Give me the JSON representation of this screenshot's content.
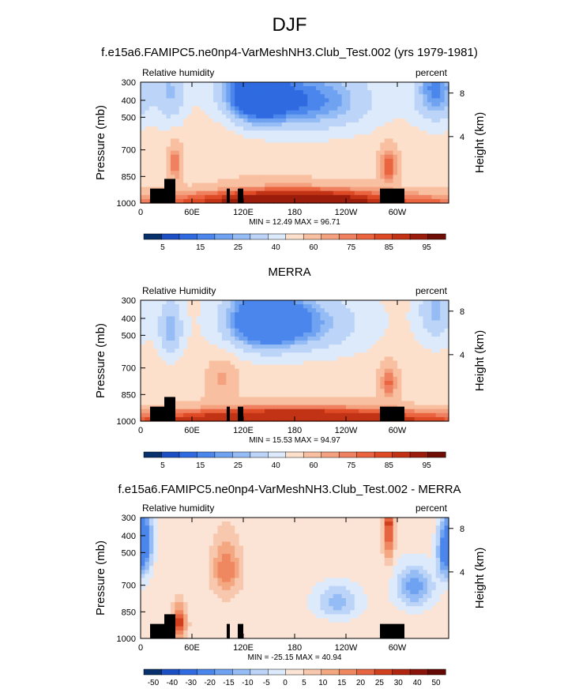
{
  "main_title": "DJF",
  "colors": {
    "rh_levels": [
      "#08306b",
      "#1c4fc4",
      "#2f6ae0",
      "#4a86ec",
      "#6fa2f0",
      "#95bcf4",
      "#bcd4f8",
      "#ddeafb",
      "#fde0cc",
      "#f8c0a0",
      "#f4a180",
      "#ef8160",
      "#ea6440",
      "#de4a26",
      "#c23214",
      "#9c1c0c",
      "#6e0e06"
    ],
    "diff_levels": [
      "#08306b",
      "#1c4fc4",
      "#2f6ae0",
      "#4a86ec",
      "#6fa2f0",
      "#95bcf4",
      "#bcd4f8",
      "#ddeafb",
      "#fbe4d5",
      "#f8c8ae",
      "#f4a882",
      "#ef8760",
      "#e66440",
      "#d0401f",
      "#b02510",
      "#8a130a",
      "#640804"
    ],
    "topography": "#000000"
  },
  "chart_data": [
    {
      "type": "heatmap",
      "title": "f.e15a6.FAMIPC5.ne0np4-VarMeshNH3.Club_Test.002 (yrs 1979-1981)",
      "left_label": "Relative humidity",
      "right_label": "percent",
      "ylabel": "Pressure (mb)",
      "ylabel_right": "Height (km)",
      "x_ticks": [
        "0",
        "60E",
        "120E",
        "180",
        "120W",
        "60W"
      ],
      "y_ticks": [
        "300",
        "400",
        "500",
        "700",
        "850",
        "1000"
      ],
      "y_right_ticks": [
        "8",
        "4"
      ],
      "minmax_text": "MIN =  12.49   MAX =  96.71",
      "min": 12.49,
      "max": 96.71,
      "colorbar_labels": [
        "5",
        "15",
        "25",
        "40",
        "60",
        "75",
        "85",
        "95"
      ],
      "blobs": [
        {
          "lon": 130,
          "p": 340,
          "v": 12,
          "s": 22
        },
        {
          "lon": 200,
          "p": 360,
          "v": 18,
          "s": 40
        },
        {
          "lon": 345,
          "p": 320,
          "v": 18,
          "s": 14
        },
        {
          "lon": 35,
          "p": 330,
          "v": 30,
          "s": 10
        },
        {
          "lon": 95,
          "p": 500,
          "v": 62,
          "s": 18
        },
        {
          "lon": 40,
          "p": 680,
          "v": 80,
          "s": 5
        },
        {
          "lon": 290,
          "p": 690,
          "v": 86,
          "s": 6
        },
        {
          "lon": 140,
          "p": 700,
          "v": 58,
          "s": 25
        },
        {
          "lon": 180,
          "p": 950,
          "v": 90,
          "s": 60
        }
      ]
    },
    {
      "type": "heatmap",
      "title": "MERRA",
      "left_label": "Relative Humidity",
      "right_label": "percent",
      "ylabel": "Pressure (mb)",
      "ylabel_right": "Height (km)",
      "x_ticks": [
        "0",
        "60E",
        "120E",
        "180",
        "120W",
        "60W"
      ],
      "y_ticks": [
        "300",
        "400",
        "500",
        "700",
        "850",
        "1000"
      ],
      "y_right_ticks": [
        "8",
        "4"
      ],
      "minmax_text": "MIN =  15.53   MAX =  94.97",
      "min": 15.53,
      "max": 94.97,
      "colorbar_labels": [
        "5",
        "15",
        "25",
        "40",
        "60",
        "75",
        "85",
        "95"
      ],
      "blobs": [
        {
          "lon": 140,
          "p": 360,
          "v": 15,
          "s": 24
        },
        {
          "lon": 190,
          "p": 380,
          "v": 25,
          "s": 40
        },
        {
          "lon": 35,
          "p": 400,
          "v": 25,
          "s": 8
        },
        {
          "lon": 345,
          "p": 330,
          "v": 28,
          "s": 12
        },
        {
          "lon": 95,
          "p": 650,
          "v": 72,
          "s": 10
        },
        {
          "lon": 290,
          "p": 680,
          "v": 82,
          "s": 6
        },
        {
          "lon": 180,
          "p": 960,
          "v": 88,
          "s": 80
        }
      ]
    },
    {
      "type": "heatmap",
      "title": "f.e15a6.FAMIPC5.ne0np4-VarMeshNH3.Club_Test.002 - MERRA",
      "left_label": "Relative humidity",
      "right_label": "percent",
      "ylabel": "Pressure (mb)",
      "ylabel_right": "Height (km)",
      "x_ticks": [
        "0",
        "60E",
        "120E",
        "180",
        "120W",
        "60W"
      ],
      "y_ticks": [
        "300",
        "400",
        "500",
        "700",
        "850",
        "1000"
      ],
      "y_right_ticks": [
        "8",
        "4"
      ],
      "minmax_text": "MIN = -25.15   MAX =  40.94",
      "min": -25.15,
      "max": 40.94,
      "colorbar_labels": [
        "-50",
        "-40",
        "-30",
        "-20",
        "-15",
        "-10",
        "-5",
        "0",
        "5",
        "10",
        "15",
        "20",
        "25",
        "30",
        "40",
        "50"
      ],
      "blobs": [
        {
          "lon": 5,
          "p": 380,
          "v": -25,
          "s": 5
        },
        {
          "lon": 355,
          "p": 420,
          "v": -20,
          "s": 5
        },
        {
          "lon": 100,
          "p": 500,
          "v": 20,
          "s": 8
        },
        {
          "lon": 290,
          "p": 320,
          "v": 30,
          "s": 3
        },
        {
          "lon": 45,
          "p": 850,
          "v": 30,
          "s": 4
        },
        {
          "lon": 230,
          "p": 700,
          "v": -12,
          "s": 15
        },
        {
          "lon": 320,
          "p": 600,
          "v": -18,
          "s": 12
        },
        {
          "lon": 170,
          "p": 900,
          "v": 5,
          "s": 50
        }
      ]
    }
  ]
}
